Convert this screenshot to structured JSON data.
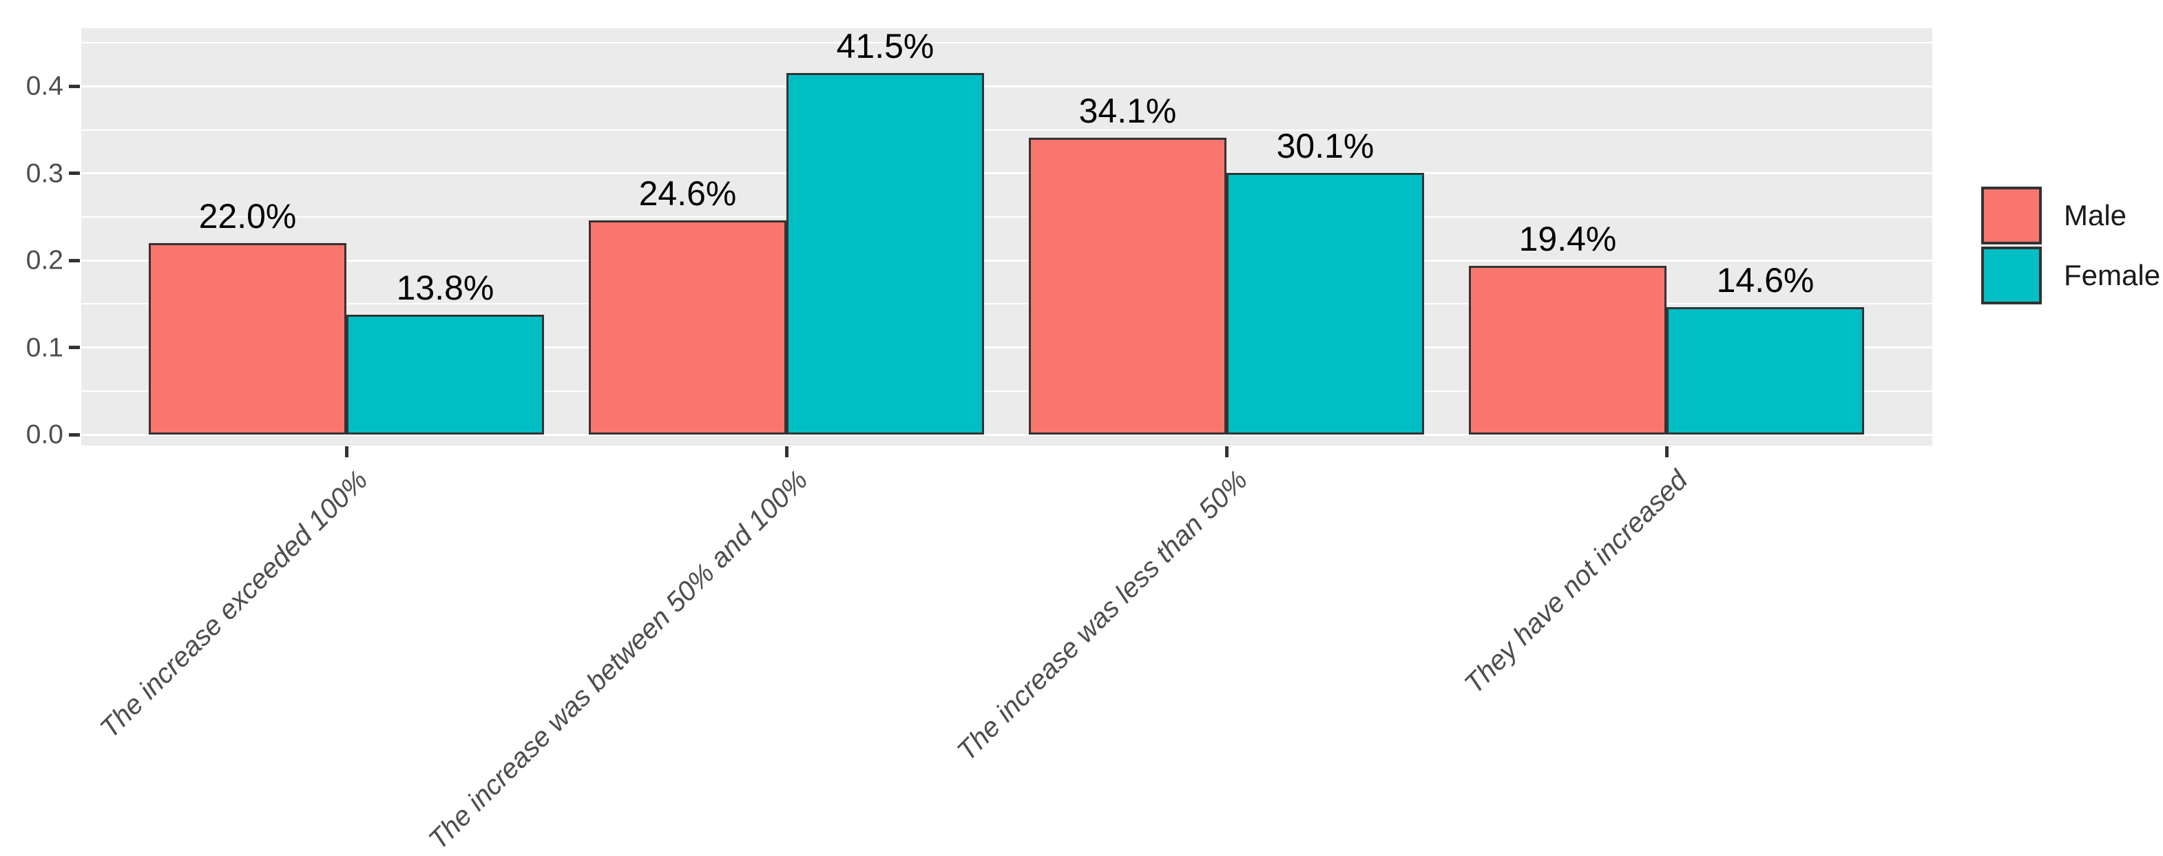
{
  "chart_data": {
    "type": "bar",
    "title": "",
    "xlabel": "",
    "ylabel": "",
    "categories": [
      "The increase exceeded 100%",
      "The increase was between 50% and 100%",
      "The increase was less than 50%",
      "They have not increased"
    ],
    "series": [
      {
        "name": "Male",
        "color": "#F8766D",
        "values": [
          0.22,
          0.246,
          0.341,
          0.194
        ],
        "value_labels": [
          "22.0%",
          "24.6%",
          "34.1%",
          "19.4%"
        ]
      },
      {
        "name": "Female",
        "color": "#00BFC4",
        "values": [
          0.138,
          0.415,
          0.301,
          0.146
        ],
        "value_labels": [
          "13.8%",
          "41.5%",
          "30.1%",
          "14.6%"
        ]
      }
    ],
    "y_axis": {
      "tick_labels": [
        "0.0",
        "0.1",
        "0.2",
        "0.3",
        "0.4"
      ],
      "tick_values": [
        0.0,
        0.1,
        0.2,
        0.3,
        0.4
      ],
      "minor_tick_values": [
        0.05,
        0.15,
        0.25,
        0.35,
        0.45
      ],
      "range": [
        0,
        0.466
      ]
    },
    "legend": {
      "position": "right",
      "entries": [
        {
          "label": "Male",
          "color": "#F8766D"
        },
        {
          "label": "Female",
          "color": "#00BFC4"
        }
      ]
    },
    "style": {
      "panel_background": "#EBEBEB",
      "grid_color": "#FFFFFF",
      "bar_border_color": "#333333",
      "axis_text_color": "#4D4D4D",
      "value_label_color": "#000000",
      "tick_mark_color": "#333333"
    },
    "grid": "on"
  }
}
